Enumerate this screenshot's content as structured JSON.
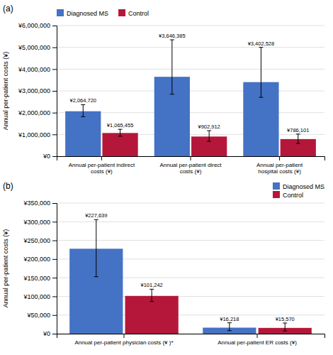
{
  "chart_data": [
    {
      "type": "bar",
      "title": "(a)",
      "ylabel": "Annual per-patient costs (¥)",
      "categories": [
        "Annual per-patient indirect\ncosts (¥)",
        "Annual per-patient direct\ncosts (¥)",
        "Annual per-patient\nhospital costs (¥)"
      ],
      "series": [
        {
          "name": "Diagnosed MS",
          "color": "#4472C4",
          "values": [
            2064720,
            3646385,
            3402528
          ],
          "value_labels": [
            "¥2,064,720",
            "¥3,646,385",
            "¥3,402,528"
          ],
          "error_up": [
            300000,
            1700000,
            1600000
          ],
          "error_down": [
            250000,
            800000,
            700000
          ]
        },
        {
          "name": "Control",
          "color": "#B5173A",
          "values": [
            1065455,
            902912,
            786101
          ],
          "value_labels": [
            "¥1,065,455",
            "¥902,912",
            "¥786,101"
          ],
          "error_up": [
            170000,
            270000,
            230000
          ],
          "error_down": [
            150000,
            220000,
            200000
          ]
        }
      ],
      "ylim": [
        0,
        6000000
      ],
      "yticks": [
        {
          "value": 0,
          "label": "¥0"
        },
        {
          "value": 1000000,
          "label": "¥1,000,000"
        },
        {
          "value": 2000000,
          "label": "¥2,000,000"
        },
        {
          "value": 3000000,
          "label": "¥3,000,000"
        },
        {
          "value": 4000000,
          "label": "¥4,000,000"
        },
        {
          "value": 5000000,
          "label": "¥5,000,000"
        },
        {
          "value": 6000000,
          "label": "¥6,000,000"
        }
      ],
      "grid": true,
      "legend": "upper left",
      "data_labels": true
    },
    {
      "type": "bar",
      "title": "(b)",
      "ylabel": "Annual per-patient costs (¥)",
      "categories": [
        "Annual per-patient physician costs (¥ )*",
        "Annual per-patient ER costs (¥)"
      ],
      "series": [
        {
          "name": "Diagnosed MS",
          "color": "#4472C4",
          "values": [
            227639,
            16218
          ],
          "value_labels": [
            "¥227,639",
            "¥16,218"
          ],
          "error_up": [
            78000,
            13000
          ],
          "error_down": [
            75000,
            8000
          ]
        },
        {
          "name": "Control",
          "color": "#B5173A",
          "values": [
            101242,
            15570
          ],
          "value_labels": [
            "¥101,242",
            "¥15,570"
          ],
          "error_up": [
            18000,
            13000
          ],
          "error_down": [
            15000,
            8000
          ]
        }
      ],
      "ylim": [
        0,
        350000
      ],
      "yticks": [
        {
          "value": 0,
          "label": "¥0"
        },
        {
          "value": 50000,
          "label": "¥50,000"
        },
        {
          "value": 100000,
          "label": "¥100,000"
        },
        {
          "value": 150000,
          "label": "¥150,000"
        },
        {
          "value": 200000,
          "label": "¥200,000"
        },
        {
          "value": 250000,
          "label": "¥250,000"
        },
        {
          "value": 300000,
          "label": "¥300,000"
        },
        {
          "value": 350000,
          "label": "¥350,000"
        }
      ],
      "grid": true,
      "legend": "upper right",
      "data_labels": true
    }
  ]
}
